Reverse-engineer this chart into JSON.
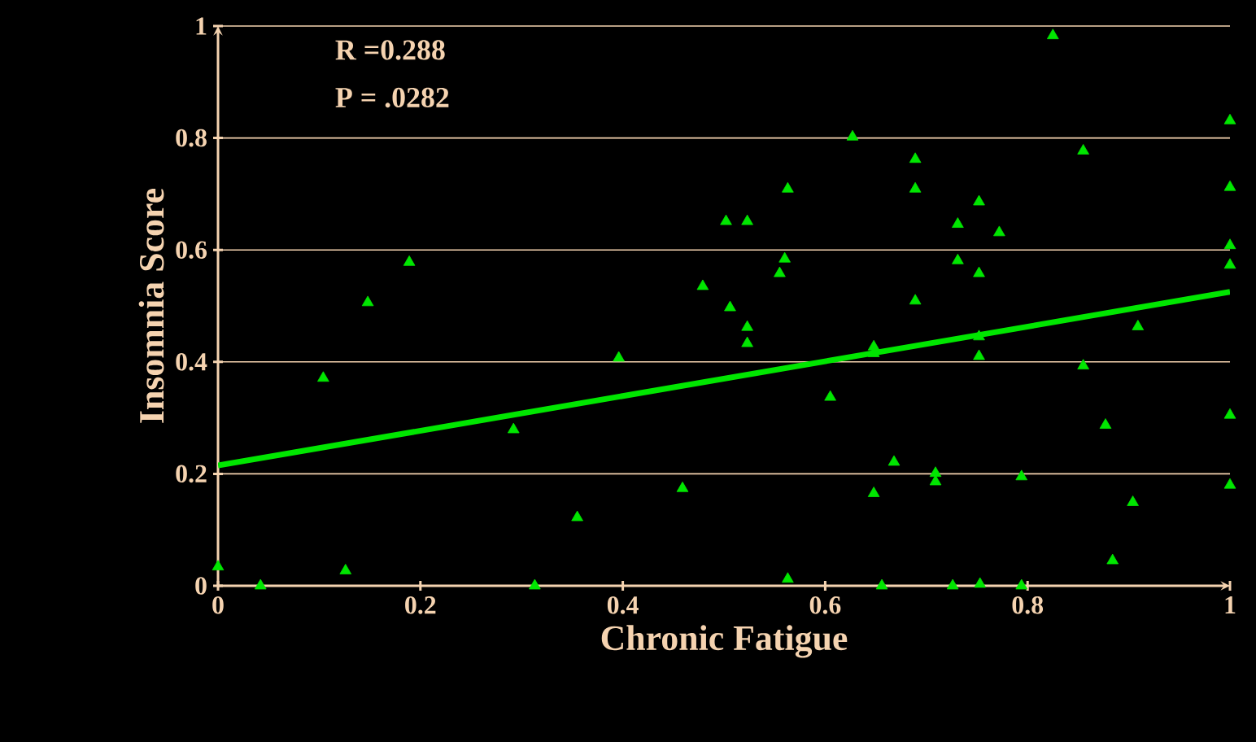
{
  "chart_data": {
    "type": "scatter",
    "xlabel": "Chronic Fatigue",
    "ylabel": "Insomnia Score",
    "annotations": [
      "R =0.288",
      "P = .0282"
    ],
    "xlim": [
      0,
      1
    ],
    "ylim": [
      0,
      1
    ],
    "xticks": [
      0,
      0.2,
      0.4,
      0.6,
      0.8,
      1
    ],
    "yticks": [
      0,
      0.2,
      0.4,
      0.6,
      0.8,
      1
    ],
    "grid": "y",
    "marker": "triangle",
    "series": [
      {
        "color": "#00e600",
        "x": [
          0,
          0.042,
          0.104,
          0.126,
          0.148,
          0.189,
          0.292,
          0.313,
          0.355,
          0.396,
          0.459,
          0.479,
          0.502,
          0.523,
          0.506,
          0.523,
          0.523,
          0.56,
          0.555,
          0.563,
          0.563,
          0.605,
          0.627,
          0.648,
          0.648,
          0.648,
          0.656,
          0.668,
          0.689,
          0.689,
          0.689,
          0.709,
          0.709,
          0.726,
          0.731,
          0.731,
          0.752,
          0.752,
          0.752,
          0.752,
          0.753,
          0.772,
          0.794,
          0.794,
          0.825,
          0.855,
          0.855,
          0.877,
          0.884,
          0.904,
          0.909,
          1,
          1,
          1,
          1,
          1,
          1
        ],
        "values": [
          0.034,
          0,
          0.371,
          0.027,
          0.506,
          0.578,
          0.279,
          0,
          0.122,
          0.407,
          0.174,
          0.535,
          0.651,
          0.651,
          0.497,
          0.462,
          0.433,
          0.584,
          0.558,
          0.709,
          0.012,
          0.337,
          0.802,
          0.427,
          0.415,
          0.165,
          0,
          0.221,
          0.762,
          0.709,
          0.509,
          0.201,
          0.186,
          0,
          0.646,
          0.581,
          0.686,
          0.558,
          0.445,
          0.41,
          0.003,
          0.631,
          0.195,
          0,
          0.983,
          0.777,
          0.393,
          0.287,
          0.045,
          0.149,
          0.463,
          0.831,
          0.712,
          0.608,
          0.573,
          0.305,
          0.18
        ]
      },
      {
        "type": "line",
        "marker": "none",
        "color": "#00e600",
        "x": [
          0,
          1
        ],
        "values": [
          0.215,
          0.525
        ]
      }
    ]
  }
}
